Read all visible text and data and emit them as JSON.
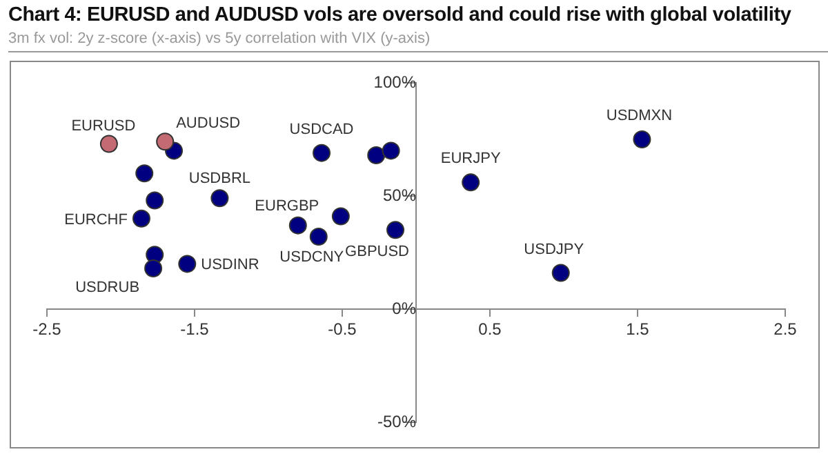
{
  "chart_data": {
    "type": "scatter",
    "title": "Chart 4: EURUSD and AUDUSD vols are oversold and could rise with global volatility",
    "subtitle": "3m fx vol: 2y z-score (x-axis) vs 5y correlation with VIX (y-axis)",
    "series": [
      {
        "color": "#c46a72",
        "x": [
          -2.08,
          -1.7
        ],
        "values": [
          73,
          74
        ]
      },
      {
        "color": "#000080",
        "x": [
          -1.64,
          -1.84,
          -1.77,
          -1.86,
          -1.33,
          -1.77,
          -1.78,
          -1.55,
          -0.64,
          -0.27,
          -0.17,
          -0.8,
          -0.66,
          -0.51,
          -0.14,
          0.37,
          1.53,
          0.98
        ],
        "values": [
          70,
          60,
          48,
          40,
          49,
          24,
          18,
          20,
          69,
          68,
          70,
          37,
          32,
          41,
          35,
          56,
          75,
          16
        ]
      }
    ],
    "annotations": [
      {
        "text": "EURUSD",
        "x": -2.08,
        "y": 73
      },
      {
        "text": "AUDUSD",
        "x": -1.7,
        "y": 74
      },
      {
        "text": "EURCHF",
        "x": -1.86,
        "y": 40
      },
      {
        "text": "USDBRL",
        "x": -1.33,
        "y": 49
      },
      {
        "text": "USDRUB",
        "x": -1.78,
        "y": 18
      },
      {
        "text": "USDINR",
        "x": -1.55,
        "y": 20
      },
      {
        "text": "USDCAD",
        "x": -0.64,
        "y": 69
      },
      {
        "text": "EURGBP",
        "x": -0.8,
        "y": 37
      },
      {
        "text": "USDCNY",
        "x": -0.66,
        "y": 32
      },
      {
        "text": "GBPUSD",
        "x": -0.14,
        "y": 35
      },
      {
        "text": "EURJPY",
        "x": 0.37,
        "y": 56
      },
      {
        "text": "USDMXN",
        "x": 1.53,
        "y": 75
      },
      {
        "text": "USDJPY",
        "x": 0.98,
        "y": 16
      }
    ],
    "xlim": [
      -2.5,
      2.5
    ],
    "xticks": [
      -2.5,
      -1.5,
      -0.5,
      0.5,
      1.5,
      2.5
    ],
    "ylim": [
      -50,
      100
    ],
    "yticks": [
      {
        "value": -50,
        "label": "-50%"
      },
      {
        "value": 0,
        "label": "0%"
      },
      {
        "value": 50,
        "label": "50%"
      },
      {
        "value": 100,
        "label": "100%"
      }
    ],
    "marker": "circle",
    "grid": false,
    "legend": false
  }
}
